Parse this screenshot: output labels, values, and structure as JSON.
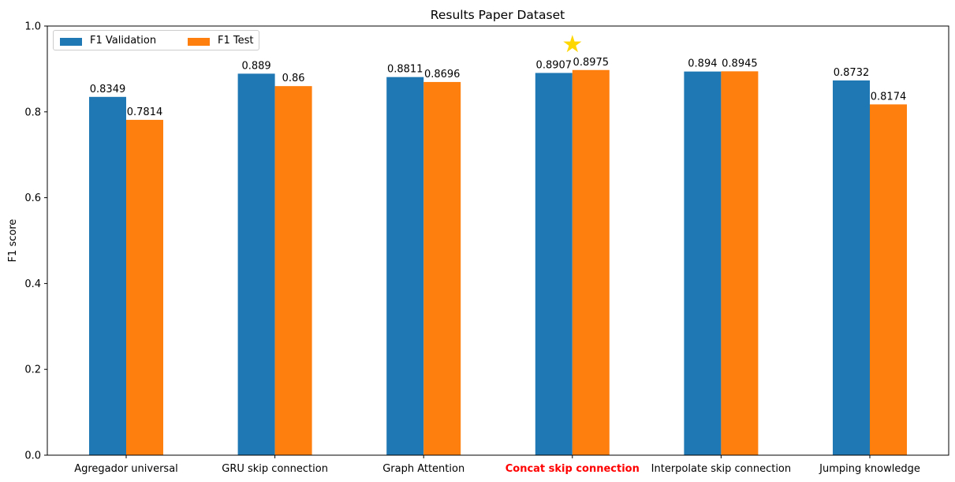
{
  "chart_data": {
    "type": "bar",
    "title": "Results Paper Dataset",
    "ylabel": "F1 score",
    "xlabel": "",
    "ylim": [
      0,
      1.0
    ],
    "yticks": [
      "0.0",
      "0.2",
      "0.4",
      "0.6",
      "0.8",
      "1.0"
    ],
    "categories": [
      "Agregador universal",
      "GRU skip connection",
      "Graph Attention",
      "Concat skip connection",
      "Interpolate skip connection",
      "Jumping knowledge"
    ],
    "highlighted_category": "Concat skip connection",
    "highlight_color": "#ff0000",
    "best_marker": {
      "category": "Concat skip connection",
      "symbol": "★",
      "color": "#ffd700"
    },
    "legend_position": "top-left",
    "grid": false,
    "series": [
      {
        "name": "F1 Validation",
        "color": "#1f77b4",
        "values": [
          0.8349,
          0.889,
          0.8811,
          0.8907,
          0.894,
          0.8732
        ],
        "labels": [
          "0.8349",
          "0.889",
          "0.8811",
          "0.8907",
          "0.894",
          "0.8732"
        ]
      },
      {
        "name": "F1 Test",
        "color": "#ff7f0e",
        "values": [
          0.7814,
          0.86,
          0.8696,
          0.8975,
          0.8945,
          0.8174
        ],
        "labels": [
          "0.7814",
          "0.86",
          "0.8696",
          "0.8975",
          "0.8945",
          "0.8174"
        ]
      }
    ]
  }
}
